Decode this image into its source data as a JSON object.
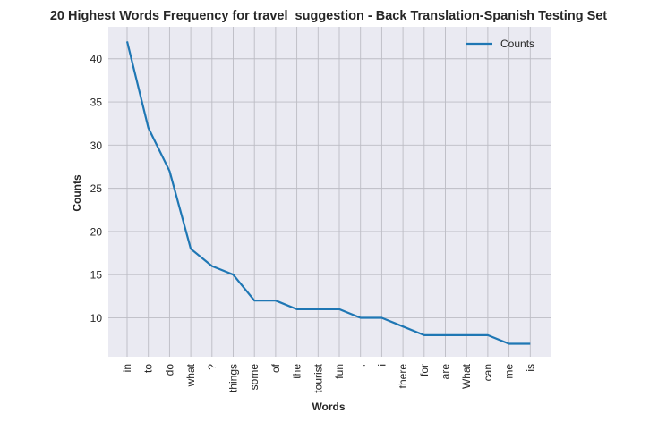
{
  "chart_data": {
    "type": "line",
    "title": "20 Highest Words Frequency for travel_suggestion - Back Translation-Spanish Testing Set",
    "xlabel": "Words",
    "ylabel": "Counts",
    "categories": [
      "in",
      "to",
      "do",
      "what",
      "?",
      "things",
      "some",
      "of",
      "the",
      "tourist",
      "fun",
      ",",
      "i",
      "there",
      "for",
      "are",
      "What",
      "can",
      "me",
      "is"
    ],
    "series": [
      {
        "name": "Counts",
        "values": [
          42,
          32,
          27,
          18,
          16,
          15,
          12,
          12,
          11,
          11,
          11,
          10,
          10,
          9,
          8,
          8,
          8,
          8,
          7,
          7
        ],
        "color": "#1f77b4"
      }
    ],
    "ylim": [
      5.5,
      43.7
    ],
    "yticks": [
      10,
      15,
      20,
      25,
      30,
      35,
      40
    ],
    "grid": true,
    "legend": "top-right",
    "background": "#eaeaf2",
    "grid_color": "#bcbcc4"
  }
}
